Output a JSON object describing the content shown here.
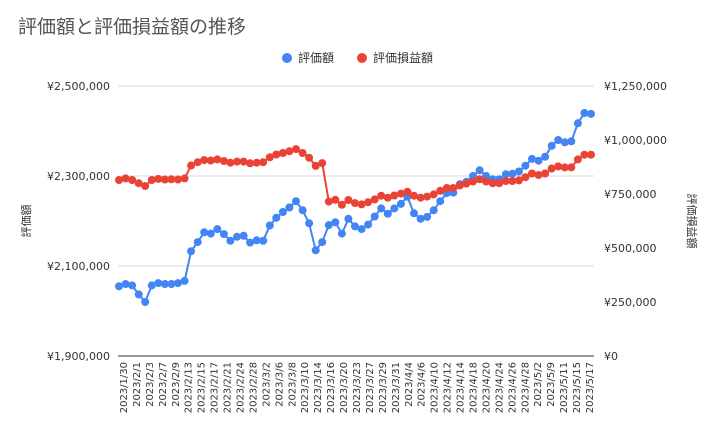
{
  "chart_data": {
    "type": "line",
    "title": "評価額と評価損益額の推移",
    "legend_position": "top",
    "grid": true,
    "left_axis": {
      "label": "評価額",
      "range": [
        1900000,
        2500000
      ],
      "ticks": [
        1900000,
        2100000,
        2300000,
        2500000
      ],
      "tick_labels": [
        "¥1,900,000",
        "¥2,100,000",
        "¥2,300,000",
        "¥2,500,000"
      ]
    },
    "right_axis": {
      "label": "評価損益額",
      "range": [
        0,
        1250000
      ],
      "ticks": [
        0,
        250000,
        500000,
        750000,
        1000000,
        1250000
      ],
      "tick_labels": [
        "¥0",
        "¥250,000",
        "¥500,000",
        "¥750,000",
        "¥1,000,000",
        "¥1,250,000"
      ]
    },
    "x_tick_labels": [
      "2023/1/30",
      "2023/2/1",
      "2023/2/3",
      "2023/2/7",
      "2023/2/9",
      "2023/2/13",
      "2023/2/15",
      "2023/2/17",
      "2023/2/21",
      "2023/2/24",
      "2023/2/28",
      "2023/3/2",
      "2023/3/6",
      "2023/3/8",
      "2023/3/10",
      "2023/3/14",
      "2023/3/16",
      "2023/3/20",
      "2023/3/23",
      "2023/3/27",
      "2023/3/29",
      "2023/3/31",
      "2023/4/4",
      "2023/4/6",
      "2023/4/10",
      "2023/4/12",
      "2023/4/14",
      "2023/4/18",
      "2023/4/20",
      "2023/4/24",
      "2023/4/26",
      "2023/4/28",
      "2023/5/2",
      "2023/5/9",
      "2023/5/11",
      "2023/5/15",
      "2023/5/17"
    ],
    "series": [
      {
        "name": "評価額",
        "axis": "left",
        "color": "#4285f4",
        "values": [
          2055000,
          2060000,
          2057000,
          2037000,
          2020000,
          2057000,
          2062000,
          2060000,
          2060000,
          2062000,
          2067000,
          2133000,
          2153000,
          2175000,
          2172000,
          2182000,
          2171000,
          2156000,
          2165000,
          2167000,
          2152000,
          2157000,
          2156000,
          2190000,
          2207000,
          2220000,
          2230000,
          2244000,
          2224000,
          2195000,
          2135000,
          2153000,
          2191000,
          2197000,
          2172000,
          2205000,
          2188000,
          2182000,
          2192000,
          2210000,
          2228000,
          2216000,
          2228000,
          2238000,
          2254000,
          2217000,
          2205000,
          2209000,
          2224000,
          2244000,
          2262000,
          2263000,
          2282000,
          2287000,
          2300000,
          2313000,
          2300000,
          2293000,
          2293000,
          2304000,
          2305000,
          2310000,
          2323000,
          2338000,
          2334000,
          2343000,
          2367000,
          2380000,
          2375000,
          2377000,
          2417000,
          2440000,
          2438000
        ]
      },
      {
        "name": "評価損益額",
        "axis": "right",
        "color": "#ea4335",
        "values": [
          815000,
          822000,
          815000,
          800000,
          787000,
          815000,
          820000,
          817000,
          818000,
          817000,
          822000,
          882000,
          897000,
          907000,
          905000,
          910000,
          903000,
          895000,
          900000,
          900000,
          892000,
          895000,
          897000,
          920000,
          933000,
          940000,
          948000,
          958000,
          940000,
          918000,
          880000,
          893000,
          715000,
          723000,
          700000,
          722000,
          708000,
          702000,
          712000,
          725000,
          742000,
          733000,
          743000,
          752000,
          760000,
          742000,
          733000,
          738000,
          748000,
          765000,
          778000,
          778000,
          790000,
          798000,
          808000,
          818000,
          808000,
          800000,
          800000,
          810000,
          810000,
          813000,
          828000,
          845000,
          838000,
          845000,
          868000,
          878000,
          873000,
          873000,
          910000,
          932000,
          932000
        ]
      }
    ]
  }
}
